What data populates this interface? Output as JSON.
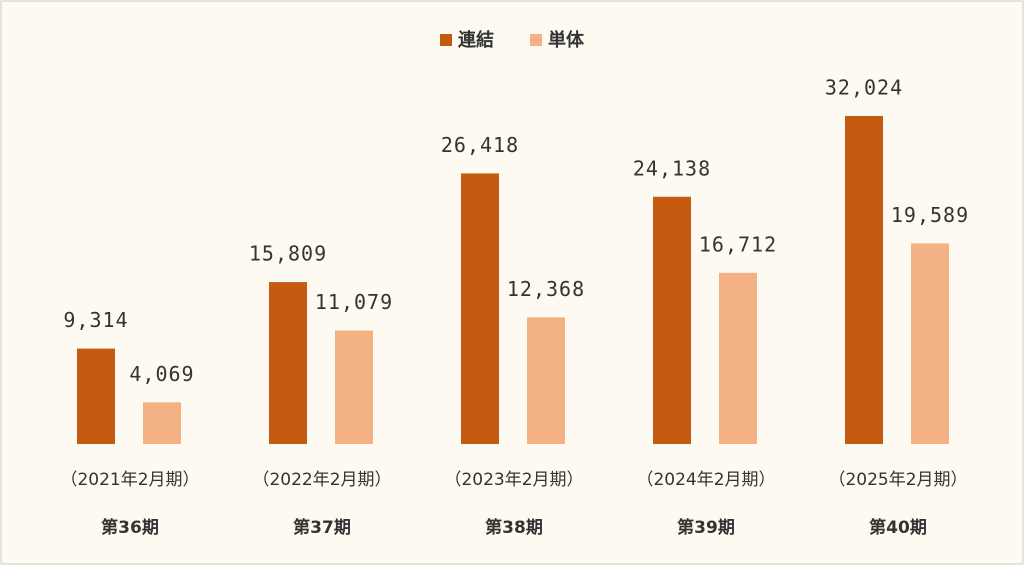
{
  "chart_data": {
    "type": "bar",
    "categories": [
      "第36期",
      "第37期",
      "第38期",
      "第39期",
      "第40期"
    ],
    "category_periods": [
      "（2021年2月期）",
      "（2022年2月期）",
      "（2023年2月期）",
      "（2024年2月期）",
      "（2025年2月期）"
    ],
    "series": [
      {
        "name": "連結",
        "color": "#c55a11",
        "values": [
          9314,
          15809,
          26418,
          24138,
          32024
        ],
        "value_labels": [
          "9,314",
          "15,809",
          "26,418",
          "24,138",
          "32,024"
        ]
      },
      {
        "name": "単体",
        "color": "#f4b183",
        "values": [
          4069,
          11079,
          12368,
          16712,
          19589
        ],
        "value_labels": [
          "4,069",
          "11,079",
          "12,368",
          "16,712",
          "19,589"
        ]
      }
    ],
    "ylim": [
      0,
      40000
    ],
    "legend": "top"
  }
}
